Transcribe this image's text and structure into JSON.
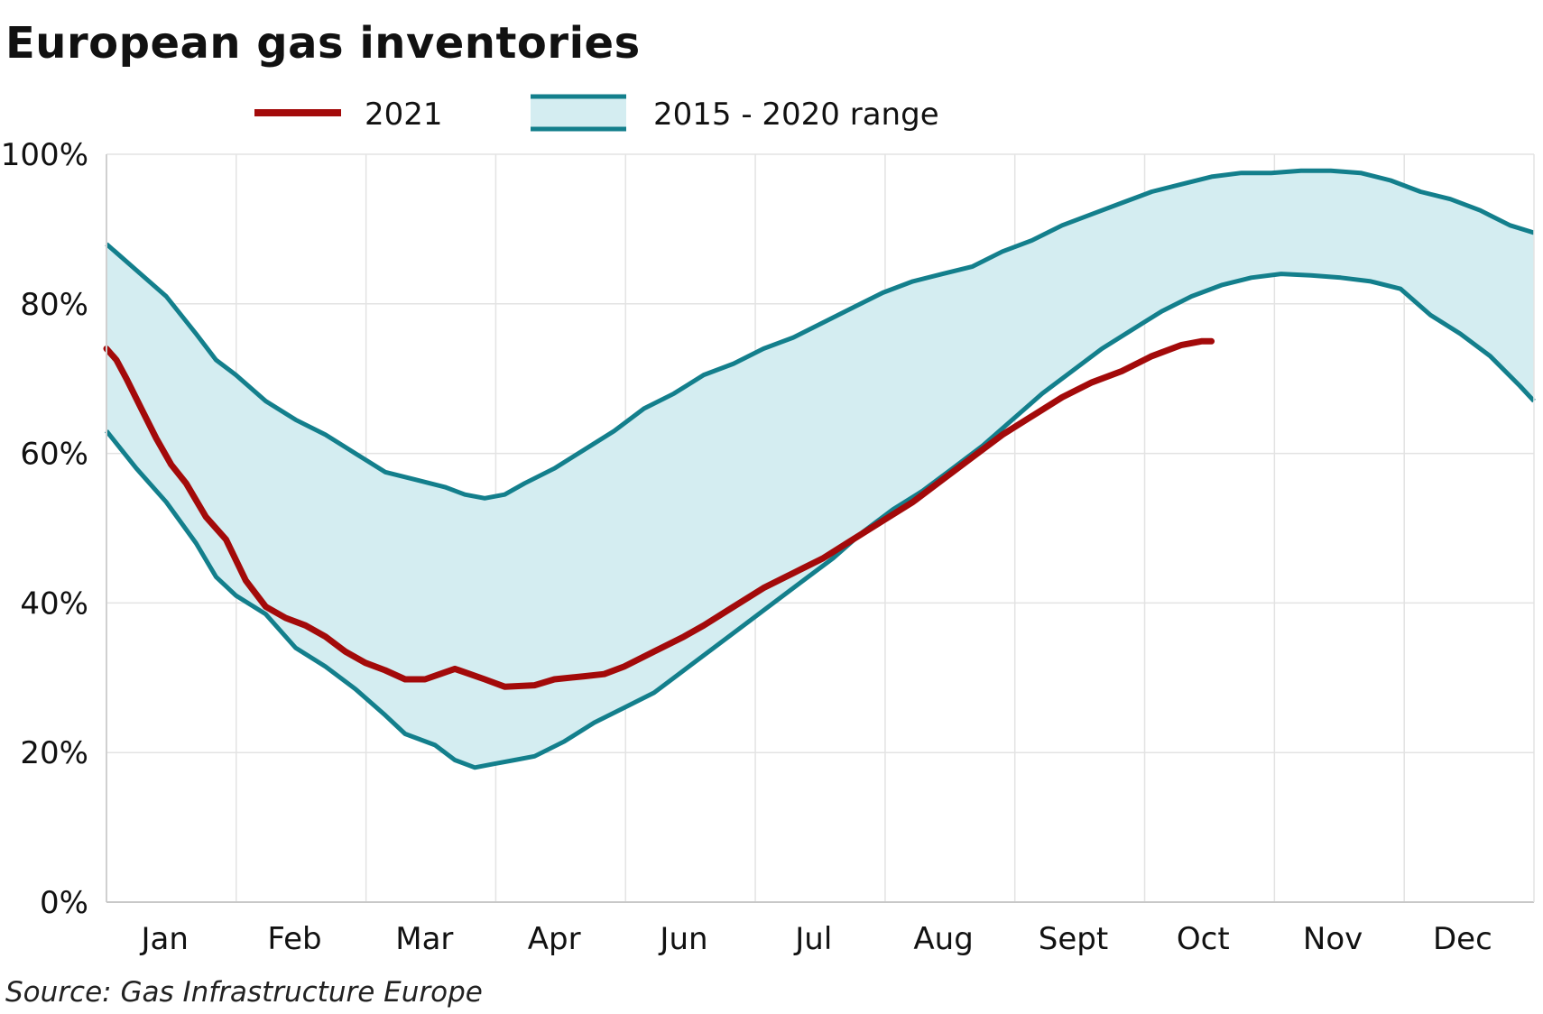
{
  "chart_data": {
    "type": "area",
    "title": "European gas inventories",
    "source": "Source: Gas Infrastructure Europe",
    "xlabel": "",
    "ylabel": "",
    "categories": [
      "Jan",
      "Feb",
      "Mar",
      "Apr",
      "Jun",
      "Jul",
      "Aug",
      "Sept",
      "Oct",
      "Nov",
      "Dec"
    ],
    "y_ticks": [
      0,
      20,
      40,
      60,
      80,
      100
    ],
    "y_tick_labels": [
      "0%",
      "20%",
      "40%",
      "60%",
      "80%",
      "100%"
    ],
    "ylim": [
      0,
      100
    ],
    "xlim": [
      0,
      11
    ],
    "grid": true,
    "legend": "top",
    "series": [
      {
        "name": "2021",
        "type": "line",
        "color": "#a30a0a",
        "points": [
          [
            0,
            74
          ],
          [
            0.1,
            72.5
          ],
          [
            0.2,
            70
          ],
          [
            0.35,
            66
          ],
          [
            0.5,
            62
          ],
          [
            0.65,
            58.5
          ],
          [
            0.8,
            56
          ],
          [
            1.0,
            51.5
          ],
          [
            1.2,
            48.5
          ],
          [
            1.4,
            43
          ],
          [
            1.6,
            39.5
          ],
          [
            1.8,
            38
          ],
          [
            2.0,
            37
          ],
          [
            2.2,
            35.5
          ],
          [
            2.4,
            33.5
          ],
          [
            2.6,
            32
          ],
          [
            2.8,
            31
          ],
          [
            3.0,
            29.8
          ],
          [
            3.2,
            29.8
          ],
          [
            3.35,
            30.5
          ],
          [
            3.5,
            31.2
          ],
          [
            3.65,
            30.5
          ],
          [
            3.8,
            29.8
          ],
          [
            4.0,
            28.8
          ],
          [
            4.3,
            29
          ],
          [
            4.5,
            29.8
          ],
          [
            4.8,
            30.2
          ],
          [
            5.0,
            30.5
          ],
          [
            5.2,
            31.5
          ],
          [
            5.5,
            33.5
          ],
          [
            5.8,
            35.5
          ],
          [
            6.0,
            37
          ],
          [
            6.3,
            39.5
          ],
          [
            6.6,
            42
          ],
          [
            6.9,
            44
          ],
          [
            7.2,
            46
          ],
          [
            7.5,
            48.5
          ],
          [
            7.8,
            51
          ],
          [
            8.1,
            53.5
          ],
          [
            8.4,
            56.5
          ],
          [
            8.7,
            59.5
          ],
          [
            9.0,
            62.5
          ],
          [
            9.3,
            65
          ],
          [
            9.6,
            67.5
          ],
          [
            9.9,
            69.5
          ],
          [
            10.2,
            71
          ],
          [
            10.5,
            73
          ],
          [
            10.8,
            74.5
          ],
          [
            11.0,
            75
          ],
          [
            11.1,
            75
          ]
        ]
      },
      {
        "name": "2015 - 2020 range",
        "type": "range",
        "color": "#137f8c",
        "fill": "#d4edf1",
        "upper": [
          [
            0,
            88
          ],
          [
            0.3,
            84.5
          ],
          [
            0.6,
            81
          ],
          [
            0.9,
            76
          ],
          [
            1.1,
            72.5
          ],
          [
            1.3,
            70.5
          ],
          [
            1.6,
            67
          ],
          [
            1.9,
            64.5
          ],
          [
            2.2,
            62.5
          ],
          [
            2.5,
            60
          ],
          [
            2.8,
            57.5
          ],
          [
            3.1,
            56.5
          ],
          [
            3.4,
            55.5
          ],
          [
            3.6,
            54.5
          ],
          [
            3.8,
            54
          ],
          [
            4.0,
            54.5
          ],
          [
            4.2,
            56
          ],
          [
            4.5,
            58
          ],
          [
            4.8,
            60.5
          ],
          [
            5.1,
            63
          ],
          [
            5.4,
            66
          ],
          [
            5.7,
            68
          ],
          [
            6.0,
            70.5
          ],
          [
            6.3,
            72
          ],
          [
            6.6,
            74
          ],
          [
            6.9,
            75.5
          ],
          [
            7.2,
            77.5
          ],
          [
            7.5,
            79.5
          ],
          [
            7.8,
            81.5
          ],
          [
            8.1,
            83
          ],
          [
            8.4,
            84
          ],
          [
            8.7,
            85
          ],
          [
            9.0,
            87
          ],
          [
            9.3,
            88.5
          ],
          [
            9.6,
            90.5
          ],
          [
            9.9,
            92
          ],
          [
            10.2,
            93.5
          ],
          [
            10.5,
            95
          ],
          [
            10.8,
            96
          ],
          [
            11.1,
            97
          ],
          [
            11.4,
            97.5
          ],
          [
            11.7,
            97.5
          ],
          [
            12.0,
            97.8
          ],
          [
            12.3,
            97.8
          ],
          [
            12.6,
            97.5
          ],
          [
            12.9,
            96.5
          ],
          [
            13.2,
            95
          ],
          [
            13.5,
            94
          ],
          [
            13.8,
            92.5
          ],
          [
            14.1,
            90.5
          ],
          [
            14.34,
            89.5
          ]
        ],
        "lower": [
          [
            0,
            63
          ],
          [
            0.3,
            58
          ],
          [
            0.6,
            53.5
          ],
          [
            0.9,
            48
          ],
          [
            1.1,
            43.5
          ],
          [
            1.3,
            41
          ],
          [
            1.6,
            38.5
          ],
          [
            1.9,
            34
          ],
          [
            2.2,
            31.5
          ],
          [
            2.5,
            28.5
          ],
          [
            2.8,
            25
          ],
          [
            3.0,
            22.5
          ],
          [
            3.3,
            21
          ],
          [
            3.5,
            19
          ],
          [
            3.7,
            18
          ],
          [
            3.9,
            18.5
          ],
          [
            4.1,
            19
          ],
          [
            4.3,
            19.5
          ],
          [
            4.6,
            21.5
          ],
          [
            4.9,
            24
          ],
          [
            5.2,
            26
          ],
          [
            5.5,
            28
          ],
          [
            5.8,
            31
          ],
          [
            6.1,
            34
          ],
          [
            6.4,
            37
          ],
          [
            6.7,
            40
          ],
          [
            7.0,
            43
          ],
          [
            7.3,
            46
          ],
          [
            7.6,
            49.5
          ],
          [
            7.9,
            52.5
          ],
          [
            8.2,
            55
          ],
          [
            8.5,
            58
          ],
          [
            8.8,
            61
          ],
          [
            9.1,
            64.5
          ],
          [
            9.4,
            68
          ],
          [
            9.7,
            71
          ],
          [
            10.0,
            74
          ],
          [
            10.3,
            76.5
          ],
          [
            10.6,
            79
          ],
          [
            10.9,
            81
          ],
          [
            11.2,
            82.5
          ],
          [
            11.5,
            83.5
          ],
          [
            11.8,
            84
          ],
          [
            12.1,
            83.8
          ],
          [
            12.4,
            83.5
          ],
          [
            12.7,
            83
          ],
          [
            13.0,
            82
          ],
          [
            13.3,
            78.5
          ],
          [
            13.6,
            76
          ],
          [
            13.9,
            73
          ],
          [
            14.2,
            69
          ],
          [
            14.34,
            67
          ]
        ]
      }
    ]
  }
}
